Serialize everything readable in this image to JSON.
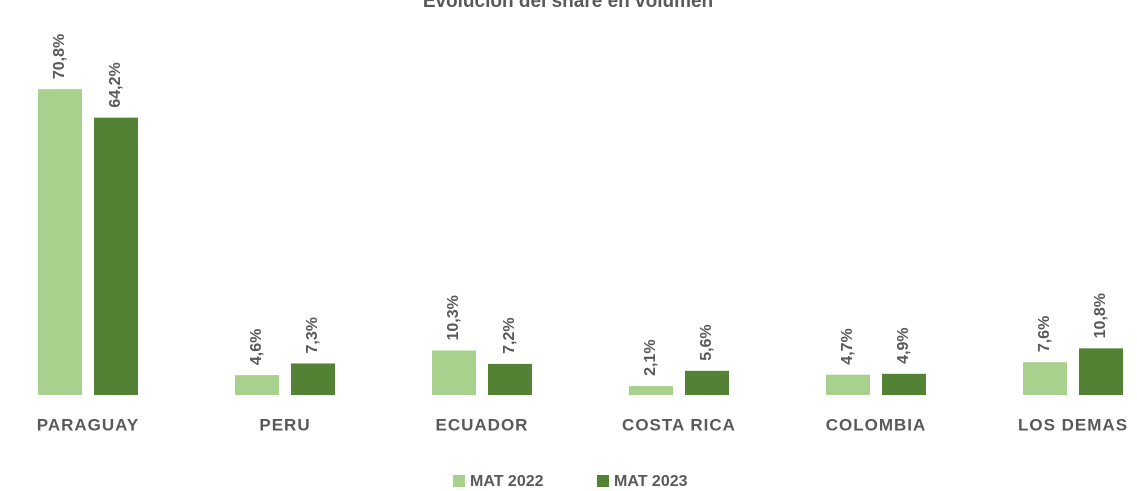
{
  "chart_data": {
    "type": "bar",
    "title": "Evolución del share en volumen",
    "categories": [
      "PARAGUAY",
      "PERU",
      "ECUADOR",
      "COSTA RICA",
      "COLOMBIA",
      "LOS DEMAS"
    ],
    "series": [
      {
        "name": "MAT 2022",
        "color": "#a9d18e",
        "values": [
          70.8,
          4.6,
          10.3,
          2.1,
          4.7,
          7.6
        ],
        "value_labels": [
          "70,8%",
          "4,6%",
          "10,3%",
          "2,1%",
          "4,7%",
          "7,6%"
        ]
      },
      {
        "name": "MAT 2023",
        "color": "#548235",
        "values": [
          64.2,
          7.3,
          7.2,
          5.6,
          4.9,
          10.8
        ],
        "value_labels": [
          "64,2%",
          "7,3%",
          "7,2%",
          "5,6%",
          "4,9%",
          "10,8%"
        ]
      }
    ],
    "legend": "bottom"
  }
}
